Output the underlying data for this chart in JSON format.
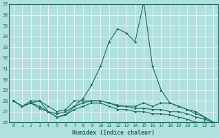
{
  "xlabel": "Humidex (Indice chaleur)",
  "ylabel": "",
  "bg_color": "#b2e0e0",
  "line_color": "#1a6b5a",
  "grid_color": "#ffffff",
  "xlim": [
    -0.5,
    23.5
  ],
  "ylim": [
    26,
    37
  ],
  "yticks": [
    26,
    27,
    28,
    29,
    30,
    31,
    32,
    33,
    34,
    35,
    36,
    37
  ],
  "xticks": [
    0,
    1,
    2,
    3,
    4,
    5,
    6,
    7,
    8,
    9,
    10,
    11,
    12,
    13,
    14,
    15,
    16,
    17,
    18,
    19,
    20,
    21,
    22,
    23
  ],
  "series": [
    [
      28.0,
      27.5,
      27.8,
      28.0,
      27.0,
      26.5,
      26.7,
      27.5,
      28.2,
      29.5,
      31.2,
      33.5,
      34.7,
      34.3,
      33.5,
      37.2,
      31.2,
      29.0,
      27.8,
      27.5,
      27.2,
      26.8,
      26.5,
      26.0
    ],
    [
      28.0,
      27.5,
      28.0,
      28.0,
      27.5,
      27.0,
      27.2,
      28.0,
      28.0,
      28.0,
      28.0,
      27.8,
      27.6,
      27.5,
      27.5,
      27.8,
      27.5,
      27.8,
      27.8,
      27.5,
      27.2,
      27.0,
      26.5,
      26.0
    ],
    [
      28.0,
      27.5,
      27.8,
      27.5,
      27.0,
      26.8,
      27.0,
      27.5,
      27.8,
      28.0,
      28.0,
      27.8,
      27.5,
      27.5,
      27.3,
      27.3,
      27.2,
      27.2,
      27.0,
      27.0,
      26.8,
      26.5,
      26.3,
      26.0
    ],
    [
      28.0,
      27.5,
      27.8,
      27.3,
      27.0,
      26.5,
      26.7,
      27.2,
      27.5,
      27.8,
      27.8,
      27.5,
      27.2,
      27.2,
      27.0,
      27.0,
      26.8,
      26.8,
      26.7,
      26.5,
      26.3,
      26.0,
      26.0,
      26.0
    ]
  ],
  "marker": ">",
  "markersize": 2.0,
  "linewidth": 0.8,
  "tick_fontsize": 5.0,
  "xlabel_fontsize": 6.0
}
